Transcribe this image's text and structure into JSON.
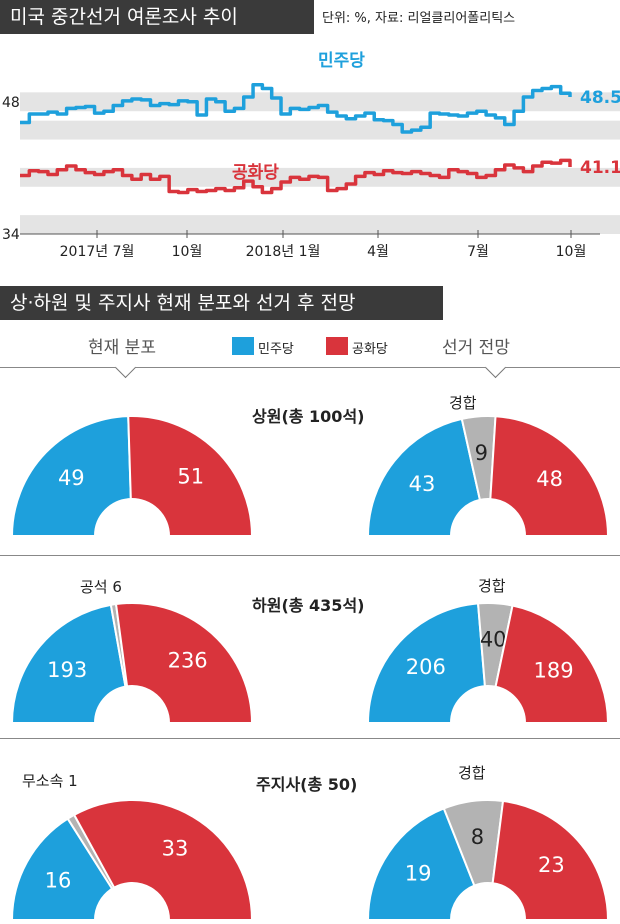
{
  "header": {
    "title": "미국 중간선거 여론조사 추이",
    "note": "단위: %, 자료: 리얼클리어폴리틱스"
  },
  "colors": {
    "dem": "#1ea0dc",
    "rep": "#d9343c",
    "tossup": "#b3b3b3",
    "band": "#e4e4e4"
  },
  "chart_data": [
    {
      "type": "line",
      "ylim": [
        34,
        52
      ],
      "y_tick_labels": [
        "48",
        "34"
      ],
      "x_tick_labels": [
        "2017년 7월",
        "10월",
        "2018년 1월",
        "4월",
        "7월",
        "10월"
      ],
      "series": [
        {
          "name": "민주당",
          "end_label": "48.5",
          "values": [
            45.8,
            46.7,
            46.7,
            46.9,
            46.7,
            47.3,
            47.4,
            47.5,
            46.8,
            47.0,
            47.6,
            48.1,
            48.3,
            48.2,
            47.6,
            47.8,
            47.7,
            48.1,
            48.0,
            46.6,
            48.3,
            48.0,
            47.0,
            47.3,
            48.5,
            49.8,
            49.4,
            48.4,
            46.7,
            47.3,
            47.2,
            47.4,
            47.6,
            46.9,
            46.5,
            46.2,
            46.5,
            46.8,
            46.1,
            46.0,
            45.6,
            44.8,
            45.0,
            45.3,
            46.8,
            46.7,
            46.6,
            46.5,
            46.8,
            47.0,
            46.6,
            46.3,
            45.6,
            47.0,
            48.5,
            49.2,
            49.4,
            49.6,
            48.9,
            48.5
          ]
        },
        {
          "name": "공화당",
          "end_label": "41.1",
          "values": [
            40.2,
            40.7,
            40.6,
            40.3,
            40.8,
            41.2,
            40.8,
            40.5,
            40.3,
            40.6,
            40.8,
            40.2,
            39.8,
            40.3,
            39.8,
            40.1,
            38.5,
            38.4,
            38.7,
            38.5,
            38.6,
            38.8,
            38.6,
            38.9,
            39.6,
            39.0,
            38.4,
            38.8,
            39.5,
            40.0,
            39.8,
            40.1,
            40.0,
            38.6,
            38.8,
            39.3,
            40.1,
            40.5,
            40.3,
            40.7,
            40.5,
            40.4,
            40.6,
            40.4,
            40.2,
            40.0,
            40.8,
            40.6,
            40.4,
            40.0,
            40.2,
            40.8,
            41.3,
            41.0,
            40.6,
            41.2,
            41.6,
            41.5,
            41.8,
            41.1
          ]
        }
      ]
    },
    {
      "type": "pie",
      "variant": "half-donut",
      "title": "상원(총 100석)",
      "current": {
        "slices": [
          {
            "label": "49",
            "value": 49,
            "party": "dem"
          },
          {
            "label": "51",
            "value": 51,
            "party": "rep"
          }
        ]
      },
      "forecast": {
        "slices": [
          {
            "label": "43",
            "value": 43,
            "party": "dem"
          },
          {
            "label": "9",
            "value": 9,
            "party": "tossup"
          },
          {
            "label": "48",
            "value": 48,
            "party": "rep"
          }
        ]
      }
    },
    {
      "type": "pie",
      "variant": "half-donut",
      "title": "하원(총 435석)",
      "current": {
        "slices": [
          {
            "label": "193",
            "value": 193,
            "party": "dem"
          },
          {
            "label": "6",
            "value": 6,
            "party": "vacant"
          },
          {
            "label": "236",
            "value": 236,
            "party": "rep"
          }
        ]
      },
      "forecast": {
        "slices": [
          {
            "label": "206",
            "value": 206,
            "party": "dem"
          },
          {
            "label": "40",
            "value": 40,
            "party": "tossup"
          },
          {
            "label": "189",
            "value": 189,
            "party": "rep"
          }
        ]
      }
    },
    {
      "type": "pie",
      "variant": "half-donut",
      "title": "주지사(총 50)",
      "current": {
        "slices": [
          {
            "label": "16",
            "value": 16,
            "party": "dem"
          },
          {
            "label": "1",
            "value": 1,
            "party": "independent"
          },
          {
            "label": "33",
            "value": 33,
            "party": "rep"
          }
        ]
      },
      "forecast": {
        "slices": [
          {
            "label": "19",
            "value": 19,
            "party": "dem"
          },
          {
            "label": "8",
            "value": 8,
            "party": "tossup"
          },
          {
            "label": "23",
            "value": 23,
            "party": "rep"
          }
        ]
      }
    }
  ],
  "section2": {
    "title": "상·하원 및 주지사 현재 분포와 선거 후 전망",
    "col_current": "현재 분포",
    "col_forecast": "선거 전망",
    "legend": [
      {
        "label": "민주당",
        "party": "dem"
      },
      {
        "label": "공화당",
        "party": "rep"
      }
    ]
  },
  "outside_labels": {
    "tossup": "경합",
    "vacant": "공석 6",
    "independent": "무소속 1"
  }
}
